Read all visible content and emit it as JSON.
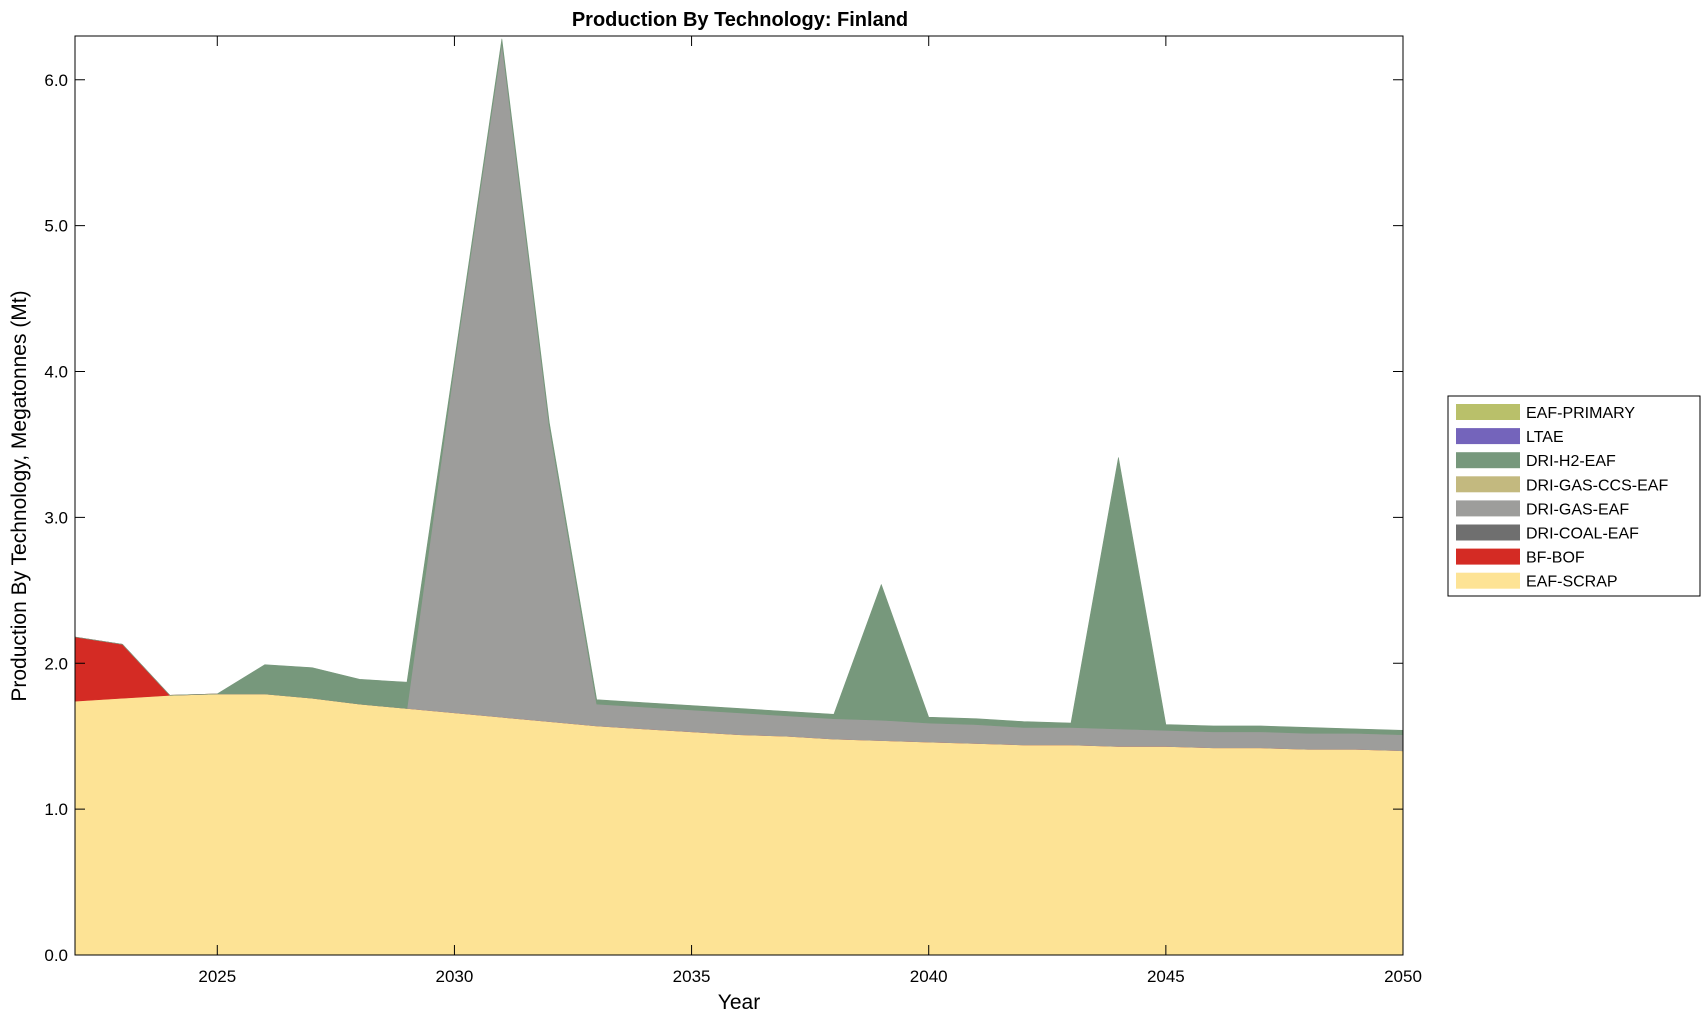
{
  "chart_data": {
    "type": "area",
    "stacked": true,
    "title": "Production By Technology: Finland",
    "xlabel": "Year",
    "ylabel": "Production By Technology, Megatonnes (Mt)",
    "xlim": [
      2022,
      2050
    ],
    "ylim": [
      0,
      6.3
    ],
    "xticks": [
      2025,
      2030,
      2035,
      2040,
      2045,
      2050
    ],
    "yticks": [
      0,
      1,
      2,
      3,
      4,
      5,
      6
    ],
    "ytick_labels": [
      "0.0",
      "1.0",
      "2.0",
      "3.0",
      "4.0",
      "5.0",
      "6.0"
    ],
    "grid": false,
    "legend_position": "right",
    "x": [
      2022,
      2023,
      2024,
      2025,
      2026,
      2027,
      2028,
      2029,
      2030,
      2031,
      2032,
      2033,
      2034,
      2035,
      2036,
      2037,
      2038,
      2039,
      2040,
      2041,
      2042,
      2043,
      2044,
      2045,
      2046,
      2047,
      2048,
      2049,
      2050
    ],
    "series": [
      {
        "name": "EAF-SCRAP",
        "color": "#fde395",
        "values": [
          1.74,
          1.76,
          1.78,
          1.79,
          1.79,
          1.76,
          1.72,
          1.69,
          1.66,
          1.63,
          1.6,
          1.57,
          1.55,
          1.53,
          1.51,
          1.5,
          1.48,
          1.47,
          1.46,
          1.45,
          1.44,
          1.44,
          1.43,
          1.43,
          1.42,
          1.42,
          1.41,
          1.41,
          1.4
        ]
      },
      {
        "name": "BF-BOF",
        "color": "#d42b24",
        "values": [
          0.44,
          0.37,
          0.0,
          0.0,
          0.0,
          0.0,
          0.0,
          0.0,
          0.0,
          0.0,
          0.0,
          0.0,
          0.0,
          0.0,
          0.0,
          0.0,
          0.0,
          0.0,
          0.0,
          0.0,
          0.0,
          0.0,
          0.0,
          0.0,
          0.0,
          0.0,
          0.0,
          0.0,
          0.0
        ]
      },
      {
        "name": "DRI-COAL-EAF",
        "color": "#6f6f6f",
        "values": [
          0,
          0,
          0,
          0,
          0,
          0,
          0,
          0,
          0,
          0,
          0,
          0,
          0,
          0,
          0,
          0,
          0,
          0,
          0,
          0,
          0,
          0,
          0,
          0,
          0,
          0,
          0,
          0,
          0
        ]
      },
      {
        "name": "DRI-GAS-EAF",
        "color": "#9d9d9b",
        "values": [
          0,
          0,
          0,
          0,
          0,
          0,
          0,
          0,
          2.38,
          4.62,
          2.02,
          0.15,
          0.15,
          0.15,
          0.15,
          0.14,
          0.14,
          0.14,
          0.13,
          0.13,
          0.12,
          0.12,
          0.12,
          0.11,
          0.11,
          0.11,
          0.11,
          0.11,
          0.11
        ]
      },
      {
        "name": "DRI-GAS-CCS-EAF",
        "color": "#c3b97f",
        "values": [
          0,
          0,
          0,
          0,
          0,
          0,
          0,
          0,
          0,
          0,
          0,
          0,
          0,
          0,
          0,
          0,
          0,
          0,
          0,
          0,
          0,
          0,
          0,
          0,
          0,
          0,
          0,
          0,
          0
        ]
      },
      {
        "name": "DRI-H2-EAF",
        "color": "#77987c",
        "values": [
          0,
          0,
          0,
          0,
          0.2,
          0.21,
          0.17,
          0.18,
          0.03,
          0.03,
          0.03,
          0.03,
          0.03,
          0.03,
          0.03,
          0.03,
          0.03,
          0.93,
          0.04,
          0.04,
          0.04,
          0.03,
          1.86,
          0.04,
          0.04,
          0.04,
          0.04,
          0.03,
          0.03
        ]
      },
      {
        "name": "LTAE",
        "color": "#7464bb",
        "values": [
          0,
          0,
          0,
          0,
          0,
          0,
          0,
          0,
          0,
          0,
          0,
          0,
          0,
          0,
          0,
          0,
          0,
          0,
          0,
          0,
          0,
          0,
          0,
          0,
          0,
          0,
          0,
          0,
          0
        ]
      },
      {
        "name": "EAF-PRIMARY",
        "color": "#b9c06a",
        "values": [
          0,
          0,
          0,
          0,
          0,
          0,
          0,
          0,
          0,
          0,
          0,
          0,
          0,
          0,
          0,
          0,
          0,
          0,
          0,
          0,
          0,
          0,
          0,
          0,
          0,
          0,
          0,
          0,
          0
        ]
      }
    ],
    "legend_order": [
      "EAF-PRIMARY",
      "LTAE",
      "DRI-H2-EAF",
      "DRI-GAS-CCS-EAF",
      "DRI-GAS-EAF",
      "DRI-COAL-EAF",
      "BF-BOF",
      "EAF-SCRAP"
    ]
  }
}
